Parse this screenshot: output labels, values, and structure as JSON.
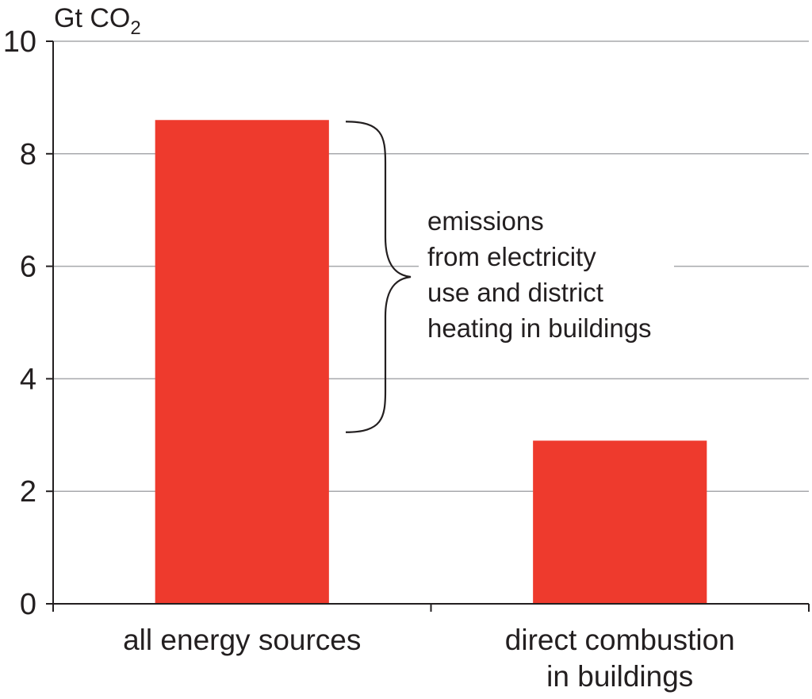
{
  "chart_data": {
    "type": "bar",
    "unit_label": "Gt CO",
    "unit_subscript": "2",
    "ylim": [
      0,
      10
    ],
    "yticks": [
      "0",
      "2",
      "4",
      "6",
      "8",
      "10"
    ],
    "grid": true,
    "categories": [
      [
        "all energy sources"
      ],
      [
        "direct combustion",
        "in buildings"
      ]
    ],
    "values": [
      8.6,
      2.9
    ],
    "colors": {
      "bar": "#ee3a2d",
      "grid": "#a7a9ac",
      "axis": "#231f20"
    },
    "annotation": {
      "lines": [
        "emissions",
        "from electricity",
        "use and district",
        "heating in buildings"
      ],
      "from": 8.6,
      "to": 3.05
    }
  }
}
